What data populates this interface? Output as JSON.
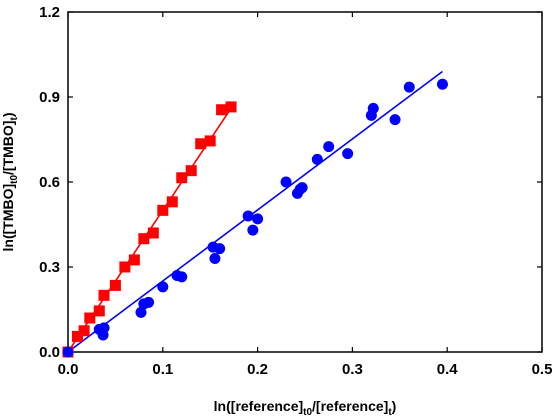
{
  "chart_data": {
    "type": "scatter",
    "title": "",
    "xlabel": {
      "main": "ln([reference]",
      "sub1": "t0",
      "mid": "/[reference]",
      "sub2": "t",
      "end": ")"
    },
    "ylabel": {
      "main": "ln([TMBO]",
      "sub1": "t0",
      "mid": "/[TMBO]",
      "sub2": "t",
      "end": ")"
    },
    "xlim": [
      0.0,
      0.5
    ],
    "ylim": [
      0.0,
      1.2
    ],
    "xticks": [
      "0.0",
      "0.1",
      "0.2",
      "0.3",
      "0.4",
      "0.5"
    ],
    "yticks": [
      "0.0",
      "0.3",
      "0.6",
      "0.9",
      "1.2"
    ],
    "grid": false,
    "series": [
      {
        "marker": "square",
        "color": "#ff0000",
        "points": [
          [
            0.0,
            0.0
          ],
          [
            0.01,
            0.055
          ],
          [
            0.017,
            0.075
          ],
          [
            0.023,
            0.12
          ],
          [
            0.033,
            0.145
          ],
          [
            0.038,
            0.2
          ],
          [
            0.05,
            0.235
          ],
          [
            0.06,
            0.3
          ],
          [
            0.07,
            0.325
          ],
          [
            0.08,
            0.4
          ],
          [
            0.09,
            0.42
          ],
          [
            0.1,
            0.5
          ],
          [
            0.11,
            0.53
          ],
          [
            0.12,
            0.615
          ],
          [
            0.13,
            0.64
          ],
          [
            0.14,
            0.735
          ],
          [
            0.15,
            0.745
          ],
          [
            0.162,
            0.855
          ],
          [
            0.172,
            0.865
          ]
        ],
        "fit": [
          [
            0.0,
            0.0
          ],
          [
            0.172,
            0.86
          ]
        ]
      },
      {
        "marker": "circle",
        "color": "#0000ff",
        "points": [
          [
            0.0,
            0.0
          ],
          [
            0.033,
            0.08
          ],
          [
            0.037,
            0.06
          ],
          [
            0.038,
            0.085
          ],
          [
            0.077,
            0.14
          ],
          [
            0.08,
            0.17
          ],
          [
            0.085,
            0.175
          ],
          [
            0.1,
            0.23
          ],
          [
            0.115,
            0.27
          ],
          [
            0.12,
            0.265
          ],
          [
            0.153,
            0.37
          ],
          [
            0.155,
            0.33
          ],
          [
            0.16,
            0.365
          ],
          [
            0.19,
            0.48
          ],
          [
            0.195,
            0.43
          ],
          [
            0.2,
            0.47
          ],
          [
            0.23,
            0.6
          ],
          [
            0.242,
            0.56
          ],
          [
            0.245,
            0.575
          ],
          [
            0.247,
            0.58
          ],
          [
            0.263,
            0.68
          ],
          [
            0.275,
            0.725
          ],
          [
            0.295,
            0.7
          ],
          [
            0.32,
            0.835
          ],
          [
            0.322,
            0.86
          ],
          [
            0.345,
            0.82
          ],
          [
            0.36,
            0.935
          ],
          [
            0.395,
            0.945
          ]
        ],
        "fit": [
          [
            0.0,
            0.0
          ],
          [
            0.395,
            0.99
          ]
        ]
      }
    ]
  }
}
